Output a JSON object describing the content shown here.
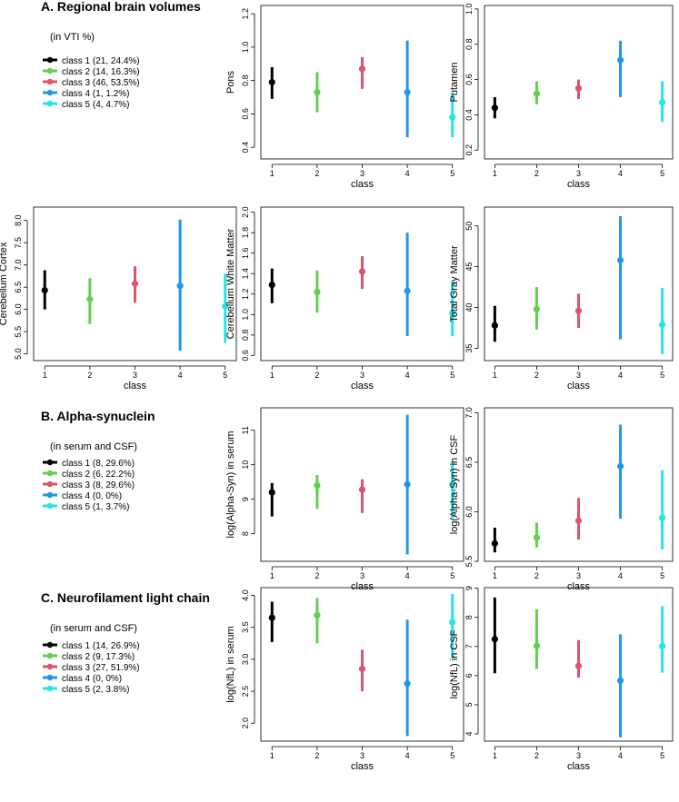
{
  "colors": {
    "class1": "#000000",
    "class2": "#61d04f",
    "class3": "#df536b",
    "class4": "#2297e6",
    "class5": "#28e2e5"
  },
  "sections": [
    {
      "title": "A. Regional brain volumes",
      "subtitle": "(in VTI %)",
      "legend": [
        "class 1 (21, 24.4%)",
        "class 2 (14, 16.3%)",
        "class 3 (46, 53.5%)",
        "class 4 (1, 1.2%)",
        "class 5 (4, 4.7%)"
      ]
    },
    {
      "title": "B. Alpha-synuclein",
      "subtitle": "(in serum and CSF)",
      "legend": [
        "class 1 (8, 29.6%)",
        "class 2 (6, 22.2%)",
        "class 3 (8, 29.6%)",
        "class 4 (0, 0%)",
        "class 5 (1, 3.7%)"
      ]
    },
    {
      "title": "C. Neurofilament light chain",
      "subtitle": "(in serum and CSF)",
      "legend": [
        "class 1 (14, 26.9%)",
        "class 2 (9, 17.3%)",
        "class 3 (27, 51.9%)",
        "class 4 (0, 0%)",
        "class 5 (2, 3.8%)"
      ]
    }
  ],
  "chart_data": [
    {
      "type": "scatter",
      "ylabel": "Pons",
      "xlabel": "class",
      "categories": [
        "1",
        "2",
        "3",
        "4",
        "5"
      ],
      "yticks": [
        "0.4",
        "0.6",
        "0.8",
        "1.0",
        "1.2"
      ],
      "ylim": [
        0.33,
        1.25
      ],
      "values": [
        0.79,
        0.73,
        0.87,
        0.73,
        0.58
      ],
      "lower": [
        0.69,
        0.61,
        0.75,
        0.46,
        0.46
      ],
      "upper": [
        0.88,
        0.85,
        0.94,
        1.04,
        0.73
      ]
    },
    {
      "type": "scatter",
      "ylabel": "Putamen",
      "xlabel": "class",
      "categories": [
        "1",
        "2",
        "3",
        "4",
        "5"
      ],
      "yticks": [
        "0.2",
        "0.4",
        "0.6",
        "0.8",
        "1.0"
      ],
      "ylim": [
        0.15,
        1.02
      ],
      "values": [
        0.44,
        0.52,
        0.55,
        0.71,
        0.47
      ],
      "lower": [
        0.38,
        0.46,
        0.49,
        0.5,
        0.36
      ],
      "upper": [
        0.5,
        0.59,
        0.6,
        0.82,
        0.59
      ]
    },
    {
      "type": "scatter",
      "ylabel": "Cerebellum Cortex",
      "xlabel": "class",
      "categories": [
        "1",
        "2",
        "3",
        "4",
        "5"
      ],
      "yticks": [
        "5.0",
        "5.5",
        "6.0",
        "6.5",
        "7.0",
        "7.5",
        "8.0"
      ],
      "ylim": [
        4.85,
        8.3
      ],
      "values": [
        6.43,
        6.23,
        6.58,
        6.53,
        6.07
      ],
      "lower": [
        6.0,
        5.67,
        6.15,
        5.07,
        5.25
      ],
      "upper": [
        6.88,
        6.7,
        6.97,
        8.02,
        6.8
      ]
    },
    {
      "type": "scatter",
      "ylabel": "Cerebellum White Matter",
      "xlabel": "class",
      "categories": [
        "1",
        "2",
        "3",
        "4",
        "5"
      ],
      "yticks": [
        "0.6",
        "0.8",
        "1.0",
        "1.2",
        "1.4",
        "1.6",
        "1.8",
        "2.0"
      ],
      "ylim": [
        0.55,
        2.05
      ],
      "values": [
        1.29,
        1.22,
        1.42,
        1.23,
        1.01
      ],
      "lower": [
        1.11,
        1.02,
        1.25,
        0.79,
        0.79
      ],
      "upper": [
        1.45,
        1.43,
        1.57,
        1.8,
        1.32
      ]
    },
    {
      "type": "scatter",
      "ylabel": "Total Gray Matter",
      "xlabel": "class",
      "categories": [
        "1",
        "2",
        "3",
        "4",
        "5"
      ],
      "yticks": [
        "35",
        "40",
        "45",
        "50"
      ],
      "ylim": [
        33.5,
        52.3
      ],
      "values": [
        37.8,
        39.8,
        39.6,
        45.8,
        37.9
      ],
      "lower": [
        35.8,
        37.3,
        37.5,
        36.1,
        34.3
      ],
      "upper": [
        40.2,
        42.5,
        41.7,
        51.2,
        42.4
      ]
    },
    {
      "type": "scatter",
      "ylabel": "log(Alpha-Syn) in serum",
      "xlabel": "class",
      "categories": [
        "1",
        "2",
        "3",
        "4",
        "5"
      ],
      "yticks": [
        "8",
        "9",
        "10",
        "11"
      ],
      "ylim": [
        7.2,
        11.65
      ],
      "values": [
        9.2,
        9.4,
        9.28,
        9.43,
        9.43
      ],
      "lower": [
        8.5,
        8.72,
        8.6,
        7.4,
        8.45
      ],
      "upper": [
        9.47,
        9.7,
        9.58,
        11.45,
        10.1
      ]
    },
    {
      "type": "scatter",
      "ylabel": "log(Alpha-Syn) in CSF",
      "xlabel": "class",
      "categories": [
        "1",
        "2",
        "3",
        "4",
        "5"
      ],
      "yticks": [
        "5.5",
        "6.0",
        "6.5",
        "7.0"
      ],
      "ylim": [
        5.5,
        7.05
      ],
      "values": [
        5.68,
        5.74,
        5.91,
        6.46,
        5.94
      ],
      "lower": [
        5.59,
        5.64,
        5.72,
        5.93,
        5.62
      ],
      "upper": [
        5.84,
        5.89,
        6.14,
        6.88,
        6.42
      ]
    },
    {
      "type": "scatter",
      "ylabel": "log(NfL) in serum",
      "xlabel": "class",
      "categories": [
        "1",
        "2",
        "3",
        "4",
        "5"
      ],
      "yticks": [
        "2.0",
        "2.5",
        "3.0",
        "3.5",
        "4.0"
      ],
      "ylim": [
        1.72,
        4.12
      ],
      "values": [
        3.65,
        3.69,
        2.85,
        2.62,
        3.58
      ],
      "lower": [
        3.27,
        3.25,
        2.5,
        1.8,
        3.02
      ],
      "upper": [
        3.9,
        3.96,
        3.15,
        3.62,
        4.02
      ]
    },
    {
      "type": "scatter",
      "ylabel": "log(NfL) in CSF",
      "xlabel": "class",
      "categories": [
        "1",
        "2",
        "3",
        "4",
        "5"
      ],
      "yticks": [
        "4",
        "5",
        "6",
        "7",
        "8",
        "9"
      ],
      "ylim": [
        3.75,
        9.02
      ],
      "values": [
        7.25,
        7.02,
        6.33,
        5.83,
        7.01
      ],
      "lower": [
        6.08,
        6.23,
        5.93,
        3.88,
        6.1
      ],
      "upper": [
        8.68,
        8.28,
        7.22,
        7.42,
        8.38
      ]
    }
  ]
}
